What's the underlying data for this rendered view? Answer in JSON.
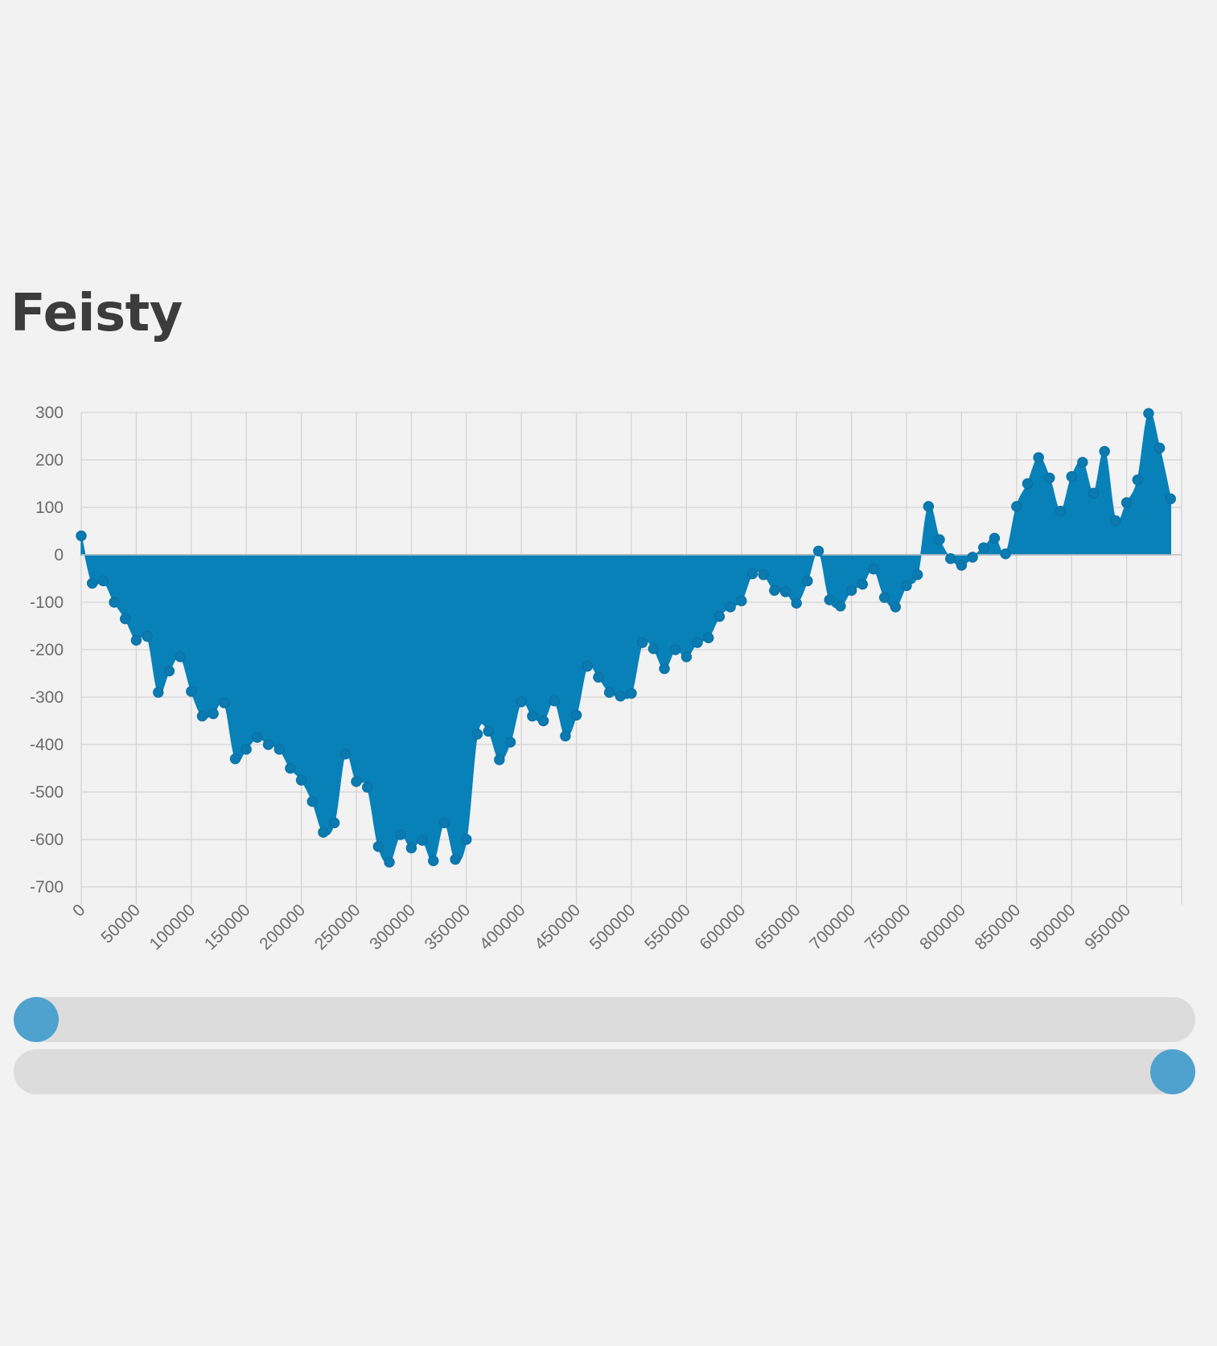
{
  "page": {
    "title": "Feisty"
  },
  "chart_data": {
    "type": "area",
    "title": "Feisty",
    "xlabel": "",
    "ylabel": "",
    "color": "#0880b8",
    "point_color": "#0a7ab0",
    "grid": true,
    "legend": "none",
    "xlim": [
      0,
      1000000
    ],
    "ylim": [
      -700,
      300
    ],
    "yticks": [
      300,
      200,
      100,
      0,
      -100,
      -200,
      -300,
      -400,
      -500,
      -600,
      -700
    ],
    "xticks": [
      0,
      50000,
      100000,
      150000,
      200000,
      250000,
      300000,
      350000,
      400000,
      450000,
      500000,
      550000,
      600000,
      650000,
      700000,
      750000,
      800000,
      850000,
      900000,
      950000
    ],
    "x": [
      0,
      10000,
      20000,
      30000,
      40000,
      50000,
      60000,
      70000,
      80000,
      90000,
      100000,
      110000,
      120000,
      130000,
      140000,
      150000,
      160000,
      170000,
      180000,
      190000,
      200000,
      210000,
      220000,
      230000,
      240000,
      250000,
      260000,
      270000,
      280000,
      290000,
      300000,
      310000,
      320000,
      330000,
      340000,
      350000,
      360000,
      370000,
      380000,
      390000,
      400000,
      410000,
      420000,
      430000,
      440000,
      450000,
      460000,
      470000,
      480000,
      490000,
      500000,
      510000,
      520000,
      530000,
      540000,
      550000,
      560000,
      570000,
      580000,
      590000,
      600000,
      610000,
      620000,
      630000,
      640000,
      650000,
      660000,
      670000,
      680000,
      690000,
      700000,
      710000,
      720000,
      730000,
      740000,
      750000,
      760000,
      770000,
      780000,
      790000,
      800000,
      810000,
      820000,
      830000,
      840000,
      850000,
      860000,
      870000,
      880000,
      890000,
      900000,
      910000,
      920000,
      930000,
      940000,
      950000,
      960000,
      970000,
      980000,
      990000
    ],
    "y": [
      40,
      -60,
      -55,
      -100,
      -135,
      -180,
      -172,
      -290,
      -245,
      -215,
      -288,
      -340,
      -335,
      -312,
      -430,
      -410,
      -385,
      -400,
      -410,
      -450,
      -475,
      -520,
      -585,
      -565,
      -420,
      -478,
      -490,
      -615,
      -648,
      -590,
      -618,
      -602,
      -645,
      -565,
      -642,
      -600,
      -378,
      -372,
      -432,
      -395,
      -310,
      -340,
      -350,
      -308,
      -382,
      -338,
      -235,
      -258,
      -290,
      -298,
      -292,
      -185,
      -198,
      -240,
      -200,
      -215,
      -185,
      -175,
      -130,
      -110,
      -97,
      -40,
      -42,
      -75,
      -78,
      -102,
      -55,
      8,
      -95,
      -108,
      -75,
      -62,
      -30,
      -90,
      -110,
      -65,
      -42,
      102,
      32,
      -8,
      -22,
      -5,
      15,
      35,
      2,
      102,
      150,
      205,
      162,
      92,
      165,
      195,
      130,
      218,
      72,
      110,
      158,
      298,
      225,
      118
    ]
  },
  "sliders": [
    {
      "value": 0
    },
    {
      "value": 1
    }
  ]
}
